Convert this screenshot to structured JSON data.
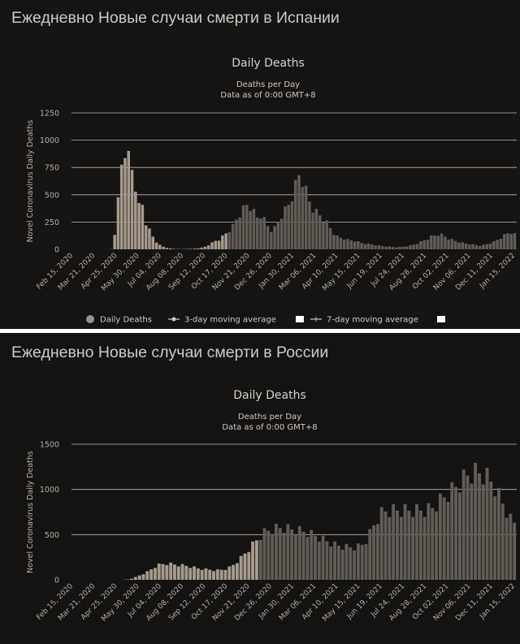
{
  "headings": {
    "spain": "Ежедневно Новые случаи смерти в Испании",
    "russia": "Ежедневно Новые случаи смерти в России"
  },
  "legend": {
    "daily": "Daily Deaths",
    "ma3": "3-day moving average",
    "ma7": "7-day moving average"
  },
  "colors": {
    "background": "#161412",
    "bars_early": "#a59a8c",
    "bars_late": "#615c56",
    "gridline": "#bdb8b2"
  },
  "chart_data": [
    {
      "type": "bar",
      "country": "Spain",
      "title": "Daily Deaths",
      "subtitle": "Deaths per Day",
      "subtitle2": "Data as of 0:00 GMT+8",
      "ylabel": "Novel Coronavirus Daily Deaths",
      "ylim": [
        0,
        1250
      ],
      "yticks": [
        0,
        250,
        500,
        750,
        1000,
        1250
      ],
      "grid": true,
      "legend_position": "bottom",
      "xticks": [
        "Feb 15, 2020",
        "Mar 21, 2020",
        "Apr 25, 2020",
        "May 30, 2020",
        "Jul 04, 2020",
        "Aug 08, 2020",
        "Sep 12, 2020",
        "Oct 17, 2020",
        "Nov 21, 2020",
        "Dec 26, 2020",
        "Jan 30, 2021",
        "Mar 06, 2021",
        "Apr 10, 2021",
        "May 15, 2021",
        "Jun 19, 2021",
        "Jul 24, 2021",
        "Aug 28, 2021",
        "Oct 02, 2021",
        "Nov 06, 2021",
        "Dec 11, 2021",
        "Jan 15, 2022"
      ],
      "series": [
        {
          "name": "Daily Deaths",
          "values": [
            0,
            0,
            0,
            0,
            0,
            0,
            0,
            0,
            0,
            0,
            0,
            2,
            150,
            450,
            800,
            950,
            850,
            750,
            600,
            400,
            420,
            250,
            180,
            120,
            70,
            40,
            25,
            15,
            8,
            5,
            3,
            2,
            3,
            5,
            4,
            8,
            10,
            15,
            25,
            40,
            60,
            80,
            90,
            120,
            150,
            180,
            220,
            280,
            330,
            380,
            420,
            400,
            350,
            300,
            320,
            280,
            220,
            180,
            200,
            260,
            320,
            370,
            420,
            500,
            600,
            700,
            650,
            550,
            450,
            380,
            350,
            320,
            280,
            250,
            200,
            150,
            120,
            110,
            100,
            90,
            85,
            80,
            70,
            60,
            55,
            50,
            45,
            40,
            35,
            30,
            28,
            25,
            22,
            20,
            22,
            25,
            30,
            35,
            45,
            55,
            70,
            85,
            100,
            120,
            130,
            140,
            135,
            120,
            100,
            90,
            80,
            70,
            60,
            55,
            50,
            45,
            40,
            35,
            40,
            50,
            60,
            70,
            90,
            110,
            130,
            150,
            160,
            140
          ]
        }
      ]
    },
    {
      "type": "bar",
      "country": "Russia",
      "title": "Daily Deaths",
      "subtitle": "Deaths per Day",
      "subtitle2": "Data as of 0:00 GMT+8",
      "ylabel": "Novel Coronavirus Daily Deaths",
      "ylim": [
        0,
        1500
      ],
      "yticks": [
        0,
        500,
        1000,
        1500
      ],
      "grid": true,
      "xticks": [
        "Feb 15, 2020",
        "Mar 21, 2020",
        "Apr 25, 2020",
        "May 30, 2020",
        "Jul 04, 2020",
        "Aug 08, 2020",
        "Sep 12, 2020",
        "Oct 17, 2020",
        "Nov 21, 2020",
        "Dec 26, 2020",
        "Jan 30, 2021",
        "Mar 06, 2021",
        "Apr 10, 2021",
        "May 15, 2021",
        "Jun 19, 2021",
        "Jul 24, 2021",
        "Aug 28, 2021",
        "Oct 02, 2021",
        "Nov 06, 2021",
        "Dec 11, 2021",
        "Jan 15, 2022"
      ],
      "series": [
        {
          "name": "Daily Deaths",
          "values": [
            0,
            0,
            0,
            0,
            0,
            0,
            0,
            0,
            0,
            0,
            0,
            0,
            0,
            2,
            5,
            15,
            30,
            50,
            70,
            90,
            120,
            150,
            170,
            180,
            185,
            180,
            175,
            170,
            165,
            160,
            150,
            140,
            130,
            125,
            120,
            115,
            110,
            110,
            115,
            125,
            140,
            170,
            210,
            250,
            300,
            350,
            400,
            450,
            500,
            540,
            560,
            575,
            585,
            590,
            590,
            580,
            575,
            570,
            560,
            550,
            540,
            520,
            500,
            480,
            460,
            440,
            420,
            400,
            390,
            380,
            375,
            370,
            370,
            380,
            400,
            450,
            530,
            620,
            700,
            760,
            780,
            790,
            790,
            790,
            790,
            790,
            790,
            790,
            790,
            790,
            790,
            800,
            820,
            860,
            900,
            940,
            980,
            1020,
            1060,
            1100,
            1150,
            1190,
            1210,
            1220,
            1215,
            1200,
            1170,
            1120,
            1050,
            960,
            870,
            780,
            690,
            650
          ]
        }
      ]
    }
  ]
}
